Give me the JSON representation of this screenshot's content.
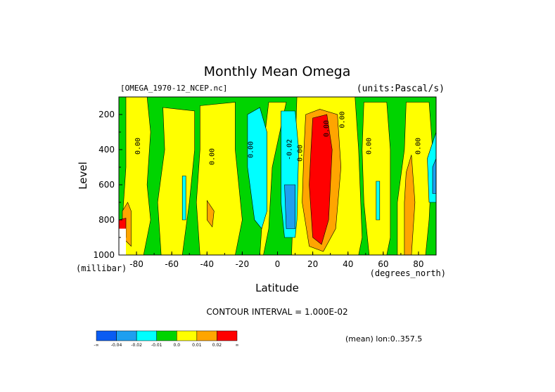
{
  "chart_data": {
    "type": "heatmap",
    "title": "Monthly Mean Omega",
    "source_label": "[OMEGA_1970-12_NCEP.nc]",
    "units_label": "(units:Pascal/s)",
    "xlabel": "Latitude",
    "xunit_label": "(degrees_north)",
    "ylabel": "Level",
    "yunit_label": "(millibar)",
    "x_ticks": [
      "-80",
      "-60",
      "-40",
      "-20",
      "0",
      "20",
      "40",
      "60",
      "80"
    ],
    "y_ticks": [
      "200",
      "400",
      "600",
      "800",
      "1000"
    ],
    "xlim": [
      -90,
      90
    ],
    "ylim": [
      1000,
      100
    ],
    "y_inverted": true,
    "contour_interval_text": "CONTOUR INTERVAL = 1.000E-02",
    "mean_note": "(mean) lon:0..357.5",
    "contour_labels": [
      {
        "text": "0.00",
        "lat": -78,
        "level": 380
      },
      {
        "text": "0.00",
        "lat": -36,
        "level": 440
      },
      {
        "text": "0.00",
        "lat": -14,
        "level": 400
      },
      {
        "text": "-0.02",
        "lat": 8,
        "level": 400
      },
      {
        "text": "0.00",
        "lat": 14,
        "level": 420
      },
      {
        "text": "0.00",
        "lat": 29,
        "level": 280
      },
      {
        "text": "0.00",
        "lat": 38,
        "level": 230
      },
      {
        "text": "0.00",
        "lat": 53,
        "level": 380
      },
      {
        "text": "0.00",
        "lat": 81,
        "level": 380
      }
    ],
    "colorbar": {
      "colors": [
        "#0a5cf2",
        "#1e9ff0",
        "#00ffff",
        "#00d400",
        "#ffff00",
        "#ffa500",
        "#ff0000"
      ],
      "labels": [
        "-∞",
        "-0.04",
        "-0.02",
        "-0.01",
        "0.0",
        "0.01",
        "0.02",
        "∞"
      ]
    },
    "regions": [
      {
        "color": "#00d400",
        "points": [
          [
            -90,
            100
          ],
          [
            90,
            100
          ],
          [
            90,
            1000
          ],
          [
            -90,
            1000
          ]
        ]
      },
      {
        "color": "#ffff00",
        "points": [
          [
            -86,
            100
          ],
          [
            -74,
            100
          ],
          [
            -72,
            300
          ],
          [
            -74,
            600
          ],
          [
            -72,
            800
          ],
          [
            -76,
            1000
          ],
          [
            -88,
            1000
          ],
          [
            -88,
            800
          ],
          [
            -86,
            500
          ]
        ]
      },
      {
        "color": "#ffff00",
        "points": [
          [
            -65,
            160
          ],
          [
            -47,
            180
          ],
          [
            -47,
            400
          ],
          [
            -50,
            700
          ],
          [
            -54,
            1000
          ],
          [
            -66,
            1000
          ],
          [
            -68,
            700
          ],
          [
            -64,
            400
          ]
        ]
      },
      {
        "color": "#ffff00",
        "points": [
          [
            -44,
            150
          ],
          [
            -24,
            130
          ],
          [
            -24,
            400
          ],
          [
            -20,
            800
          ],
          [
            -24,
            1000
          ],
          [
            -44,
            1000
          ],
          [
            -46,
            700
          ],
          [
            -44,
            400
          ]
        ]
      },
      {
        "color": "#ffff00",
        "points": [
          [
            -5,
            130
          ],
          [
            5,
            130
          ],
          [
            -3,
            500
          ],
          [
            -5,
            850
          ],
          [
            -8,
            1000
          ],
          [
            -10,
            1000
          ],
          [
            -8,
            700
          ],
          [
            -7,
            300
          ]
        ]
      },
      {
        "color": "#ffff00",
        "points": [
          [
            11,
            100
          ],
          [
            44,
            100
          ],
          [
            46,
            400
          ],
          [
            48,
            900
          ],
          [
            46,
            1000
          ],
          [
            8,
            1000
          ],
          [
            9,
            700
          ],
          [
            10,
            400
          ]
        ]
      },
      {
        "color": "#ffff00",
        "points": [
          [
            49,
            130
          ],
          [
            62,
            130
          ],
          [
            64,
            400
          ],
          [
            64,
            900
          ],
          [
            62,
            1000
          ],
          [
            52,
            1000
          ],
          [
            49,
            700
          ],
          [
            48,
            400
          ]
        ]
      },
      {
        "color": "#ffff00",
        "points": [
          [
            73,
            130
          ],
          [
            86,
            130
          ],
          [
            88,
            400
          ],
          [
            86,
            800
          ],
          [
            84,
            1000
          ],
          [
            68,
            1000
          ],
          [
            68,
            700
          ],
          [
            72,
            400
          ]
        ]
      },
      {
        "color": "#00ffff",
        "points": [
          [
            -54,
            550
          ],
          [
            -52,
            550
          ],
          [
            -52,
            800
          ],
          [
            -54,
            800
          ]
        ]
      },
      {
        "color": "#00ffff",
        "points": [
          [
            -17,
            200
          ],
          [
            -10,
            160
          ],
          [
            -6,
            300
          ],
          [
            -6,
            750
          ],
          [
            -9,
            850
          ],
          [
            -13,
            800
          ],
          [
            -17,
            500
          ]
        ]
      },
      {
        "color": "#00ffff",
        "points": [
          [
            2,
            180
          ],
          [
            10,
            180
          ],
          [
            12,
            400
          ],
          [
            11,
            800
          ],
          [
            10,
            900
          ],
          [
            4,
            900
          ],
          [
            2,
            700
          ],
          [
            2,
            400
          ]
        ]
      },
      {
        "color": "#00ffff",
        "points": [
          [
            56,
            580
          ],
          [
            58,
            580
          ],
          [
            58,
            800
          ],
          [
            56,
            800
          ]
        ]
      },
      {
        "color": "#00ffff",
        "points": [
          [
            85,
            450
          ],
          [
            90,
            300
          ],
          [
            90,
            700
          ],
          [
            86,
            700
          ]
        ]
      },
      {
        "color": "#1e9ff0",
        "points": [
          [
            4,
            600
          ],
          [
            10,
            600
          ],
          [
            10,
            850
          ],
          [
            5,
            850
          ]
        ]
      },
      {
        "color": "#1e9ff0",
        "points": [
          [
            88,
            500
          ],
          [
            90,
            450
          ],
          [
            90,
            650
          ],
          [
            88,
            650
          ]
        ]
      },
      {
        "color": "#ffa500",
        "points": [
          [
            16,
            200
          ],
          [
            24,
            170
          ],
          [
            34,
            200
          ],
          [
            36,
            500
          ],
          [
            33,
            850
          ],
          [
            26,
            980
          ],
          [
            18,
            950
          ],
          [
            14,
            700
          ],
          [
            15,
            400
          ]
        ]
      },
      {
        "color": "#ffa500",
        "points": [
          [
            -40,
            690
          ],
          [
            -36,
            750
          ],
          [
            -37,
            840
          ],
          [
            -40,
            800
          ]
        ]
      },
      {
        "color": "#ffa500",
        "points": [
          [
            -85,
            700
          ],
          [
            -83,
            750
          ],
          [
            -83,
            950
          ],
          [
            -88,
            900
          ],
          [
            -88,
            750
          ]
        ]
      },
      {
        "color": "#ffa500",
        "points": [
          [
            73,
            530
          ],
          [
            76,
            430
          ],
          [
            78,
            700
          ],
          [
            76,
            1000
          ],
          [
            72,
            1000
          ],
          [
            72,
            700
          ]
        ]
      },
      {
        "color": "#ff0000",
        "points": [
          [
            20,
            220
          ],
          [
            28,
            200
          ],
          [
            31,
            400
          ],
          [
            29,
            800
          ],
          [
            25,
            940
          ],
          [
            20,
            900
          ],
          [
            18,
            600
          ],
          [
            19,
            400
          ]
        ]
      },
      {
        "color": "#ff0000",
        "points": [
          [
            -90,
            800
          ],
          [
            -86,
            790
          ],
          [
            -86,
            900
          ],
          [
            -90,
            880
          ]
        ]
      },
      {
        "color": "#ffffff",
        "points": [
          [
            -90,
            850
          ],
          [
            -86,
            850
          ],
          [
            -86,
            1000
          ],
          [
            -90,
            1000
          ]
        ]
      }
    ]
  }
}
